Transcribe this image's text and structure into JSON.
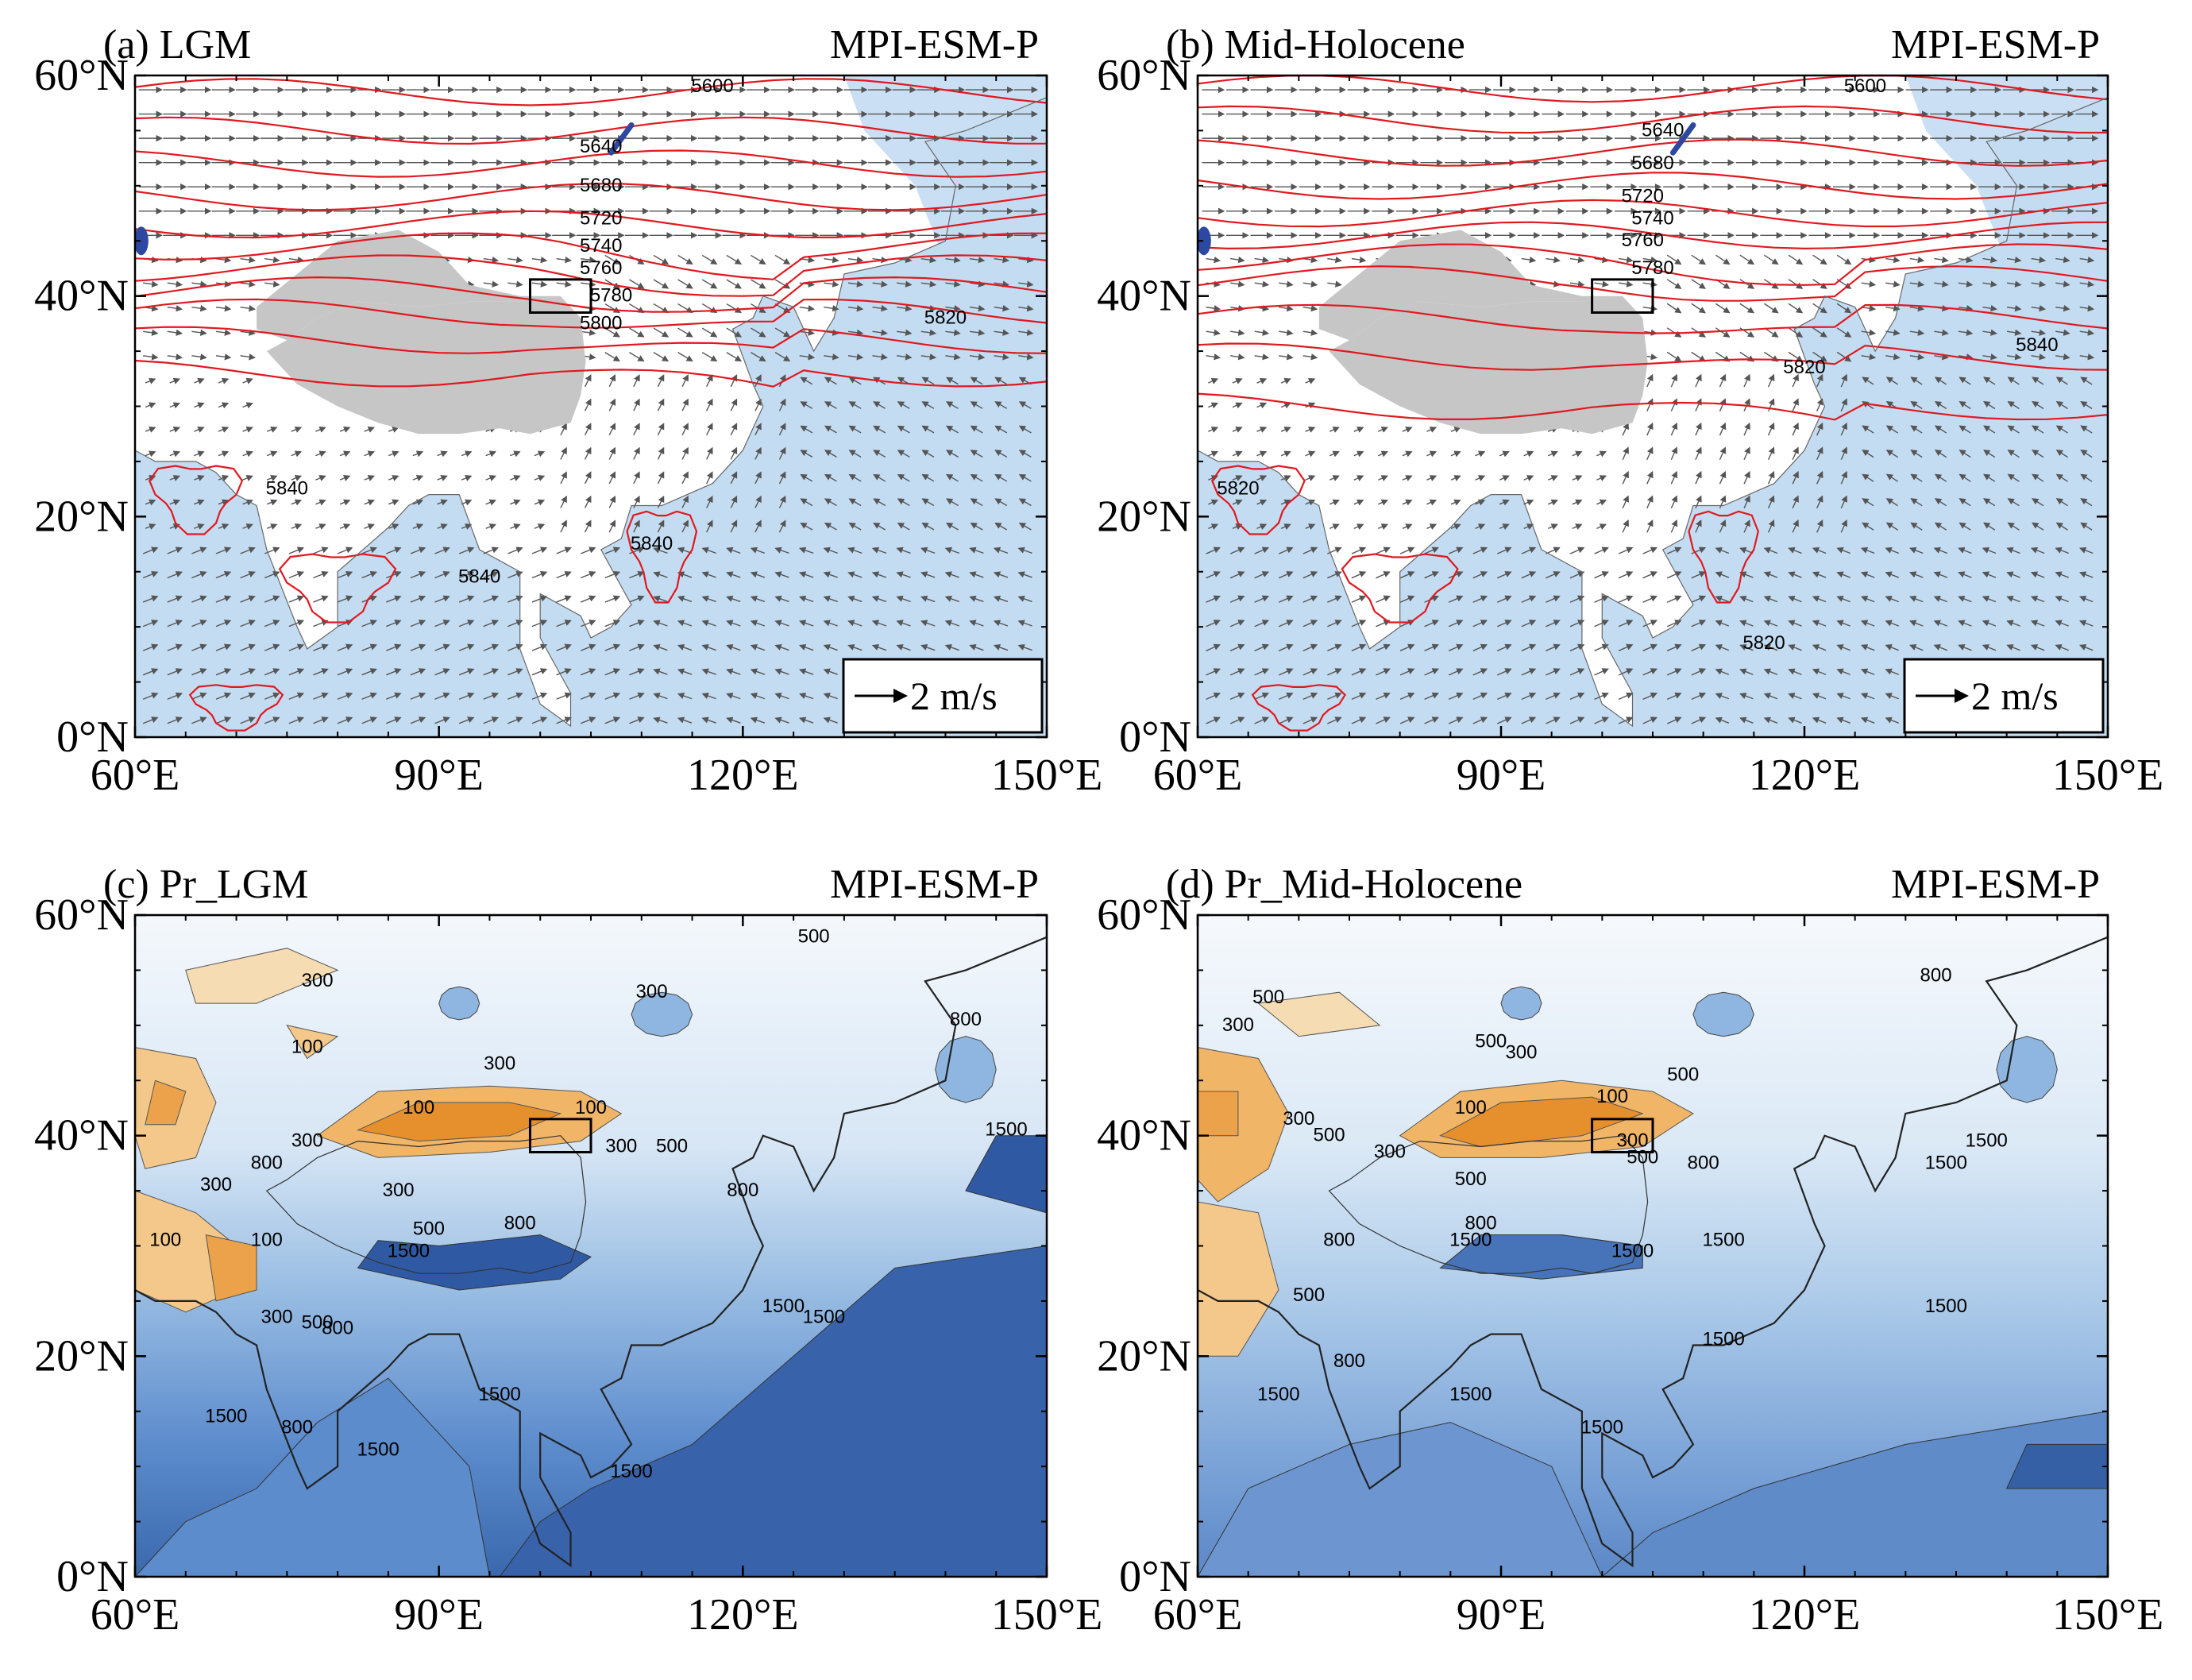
{
  "figure": {
    "units": "m/s",
    "lon_ticks": [
      "60°E",
      "90°E",
      "120°E",
      "150°E"
    ],
    "lat_ticks": [
      "0°N",
      "20°N",
      "40°N",
      "60°N"
    ],
    "lon_range": [
      60,
      150
    ],
    "lat_range": [
      0,
      60
    ],
    "colors": {
      "ocean": "#c4dcf2",
      "land": "#ffffff",
      "plateau": "#c6c6c6",
      "height_contour": "#e0191f",
      "arrow": "#555555",
      "low_precip": "#e69a3c",
      "high_precip": "#2c5aa0",
      "coast": "#222222"
    }
  },
  "panels": [
    {
      "id": "a",
      "label": "(a)  LGM",
      "model": "MPI-ESM-P",
      "type": "wind-height",
      "reference_vector": "2 m/s",
      "contour_labels": [
        {
          "text": "5600",
          "lon": 117,
          "lat": 58.5
        },
        {
          "text": "5640",
          "lon": 106,
          "lat": 53
        },
        {
          "text": "5680",
          "lon": 106,
          "lat": 49.5
        },
        {
          "text": "5720",
          "lon": 106,
          "lat": 46.5
        },
        {
          "text": "5740",
          "lon": 106,
          "lat": 44
        },
        {
          "text": "5760",
          "lon": 106,
          "lat": 42
        },
        {
          "text": "5780",
          "lon": 107,
          "lat": 39.5
        },
        {
          "text": "5800",
          "lon": 106,
          "lat": 37
        },
        {
          "text": "5820",
          "lon": 140,
          "lat": 37.5
        },
        {
          "text": "5840",
          "lon": 75,
          "lat": 22
        },
        {
          "text": "5840",
          "lon": 94,
          "lat": 14
        },
        {
          "text": "5840",
          "lon": 111,
          "lat": 17
        }
      ]
    },
    {
      "id": "b",
      "label": "(b)  Mid-Holocene",
      "model": "MPI-ESM-P",
      "type": "wind-height",
      "reference_vector": "2 m/s",
      "contour_labels": [
        {
          "text": "5600",
          "lon": 126,
          "lat": 58.5
        },
        {
          "text": "5640",
          "lon": 106,
          "lat": 54.5
        },
        {
          "text": "5680",
          "lon": 105,
          "lat": 51.5
        },
        {
          "text": "5720",
          "lon": 104,
          "lat": 48.5
        },
        {
          "text": "5740",
          "lon": 105,
          "lat": 46.5
        },
        {
          "text": "5760",
          "lon": 104,
          "lat": 44.5
        },
        {
          "text": "5780",
          "lon": 105,
          "lat": 42
        },
        {
          "text": "5820",
          "lon": 120,
          "lat": 33
        },
        {
          "text": "5840",
          "lon": 143,
          "lat": 35
        },
        {
          "text": "5820",
          "lon": 64,
          "lat": 22
        },
        {
          "text": "5820",
          "lon": 116,
          "lat": 8
        }
      ]
    },
    {
      "id": "c",
      "label": "(c)  Pr_LGM",
      "model": "MPI-ESM-P",
      "type": "precip",
      "contour_labels": [
        {
          "text": "500",
          "lon": 127,
          "lat": 57.5
        },
        {
          "text": "300",
          "lon": 78,
          "lat": 53.5
        },
        {
          "text": "300",
          "lon": 111,
          "lat": 52.5
        },
        {
          "text": "100",
          "lon": 77,
          "lat": 47.5
        },
        {
          "text": "300",
          "lon": 96,
          "lat": 46
        },
        {
          "text": "800",
          "lon": 142,
          "lat": 50
        },
        {
          "text": "100",
          "lon": 88,
          "lat": 42
        },
        {
          "text": "100",
          "lon": 105,
          "lat": 42
        },
        {
          "text": "300",
          "lon": 77,
          "lat": 39
        },
        {
          "text": "300",
          "lon": 108,
          "lat": 38.5
        },
        {
          "text": "500",
          "lon": 113,
          "lat": 38.5
        },
        {
          "text": "800",
          "lon": 73,
          "lat": 37
        },
        {
          "text": "300",
          "lon": 68,
          "lat": 35
        },
        {
          "text": "300",
          "lon": 86,
          "lat": 34.5
        },
        {
          "text": "800",
          "lon": 120,
          "lat": 34.5
        },
        {
          "text": "500",
          "lon": 89,
          "lat": 31
        },
        {
          "text": "800",
          "lon": 98,
          "lat": 31.5
        },
        {
          "text": "1500",
          "lon": 87,
          "lat": 29
        },
        {
          "text": "100",
          "lon": 63,
          "lat": 30
        },
        {
          "text": "100",
          "lon": 73,
          "lat": 30
        },
        {
          "text": "1500",
          "lon": 146,
          "lat": 40
        },
        {
          "text": "300",
          "lon": 74,
          "lat": 23
        },
        {
          "text": "500",
          "lon": 78,
          "lat": 22.5
        },
        {
          "text": "800",
          "lon": 80,
          "lat": 22
        },
        {
          "text": "1500",
          "lon": 124,
          "lat": 24
        },
        {
          "text": "1500",
          "lon": 128,
          "lat": 23
        },
        {
          "text": "1500",
          "lon": 69,
          "lat": 14
        },
        {
          "text": "800",
          "lon": 76,
          "lat": 13
        },
        {
          "text": "1500",
          "lon": 84,
          "lat": 11
        },
        {
          "text": "1500",
          "lon": 96,
          "lat": 16
        },
        {
          "text": "1500",
          "lon": 109,
          "lat": 9
        }
      ]
    },
    {
      "id": "d",
      "label": "(d)  Pr_Mid-Holocene",
      "model": "MPI-ESM-P",
      "type": "precip",
      "contour_labels": [
        {
          "text": "500",
          "lon": 67,
          "lat": 52
        },
        {
          "text": "300",
          "lon": 64,
          "lat": 49.5
        },
        {
          "text": "800",
          "lon": 133,
          "lat": 54
        },
        {
          "text": "500",
          "lon": 89,
          "lat": 48
        },
        {
          "text": "300",
          "lon": 92,
          "lat": 47
        },
        {
          "text": "500",
          "lon": 108,
          "lat": 45
        },
        {
          "text": "100",
          "lon": 87,
          "lat": 42
        },
        {
          "text": "100",
          "lon": 101,
          "lat": 43
        },
        {
          "text": "300",
          "lon": 70,
          "lat": 41
        },
        {
          "text": "500",
          "lon": 73,
          "lat": 39.5
        },
        {
          "text": "300",
          "lon": 79,
          "lat": 38
        },
        {
          "text": "300",
          "lon": 103,
          "lat": 39
        },
        {
          "text": "500",
          "lon": 104,
          "lat": 37.5
        },
        {
          "text": "800",
          "lon": 110,
          "lat": 37
        },
        {
          "text": "500",
          "lon": 87,
          "lat": 35.5
        },
        {
          "text": "800",
          "lon": 88,
          "lat": 31.5
        },
        {
          "text": "1500",
          "lon": 87,
          "lat": 30
        },
        {
          "text": "800",
          "lon": 74,
          "lat": 30
        },
        {
          "text": "1500",
          "lon": 103,
          "lat": 29
        },
        {
          "text": "1500",
          "lon": 112,
          "lat": 30
        },
        {
          "text": "1500",
          "lon": 138,
          "lat": 39
        },
        {
          "text": "1500",
          "lon": 134,
          "lat": 37
        },
        {
          "text": "500",
          "lon": 71,
          "lat": 25
        },
        {
          "text": "1500",
          "lon": 134,
          "lat": 24
        },
        {
          "text": "1500",
          "lon": 112,
          "lat": 21
        },
        {
          "text": "800",
          "lon": 75,
          "lat": 19
        },
        {
          "text": "1500",
          "lon": 68,
          "lat": 16
        },
        {
          "text": "1500",
          "lon": 87,
          "lat": 16
        },
        {
          "text": "1500",
          "lon": 100,
          "lat": 13
        }
      ]
    }
  ]
}
